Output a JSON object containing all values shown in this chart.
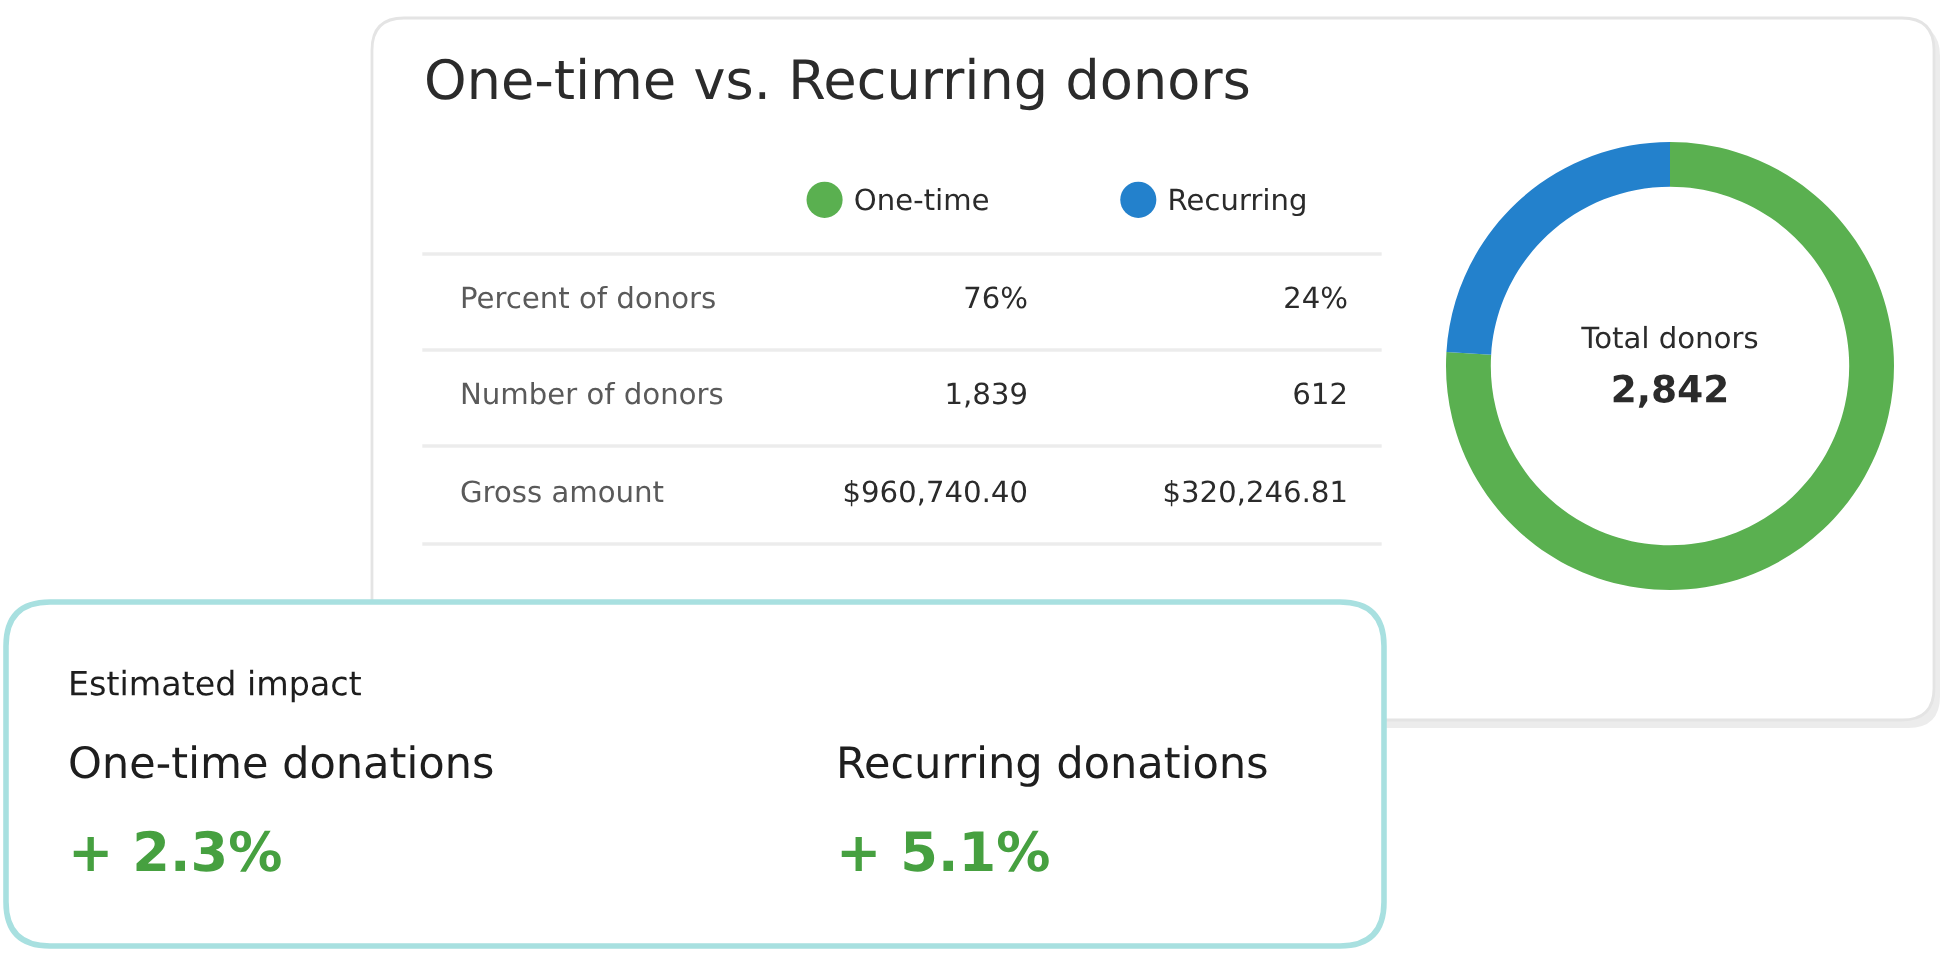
{
  "chart_data": {
    "type": "donut",
    "title": "One-time vs. Recurring donors",
    "categories": [
      "One-time",
      "Recurring"
    ],
    "values": [
      76,
      24
    ],
    "colors": [
      "#5ab050",
      "#2381cc"
    ],
    "legend": "left",
    "annotations": [
      "Percent of donors",
      "76%",
      "24%",
      "Number of donors",
      "1,839",
      "612",
      "Gross amount",
      "$960,740.40",
      "$320,246.81",
      "Total donors",
      "2,842",
      "Estimated impact",
      "One-time donations",
      "+ 2.3%",
      "Recurring donations",
      "+ 5.1%"
    ]
  }
}
